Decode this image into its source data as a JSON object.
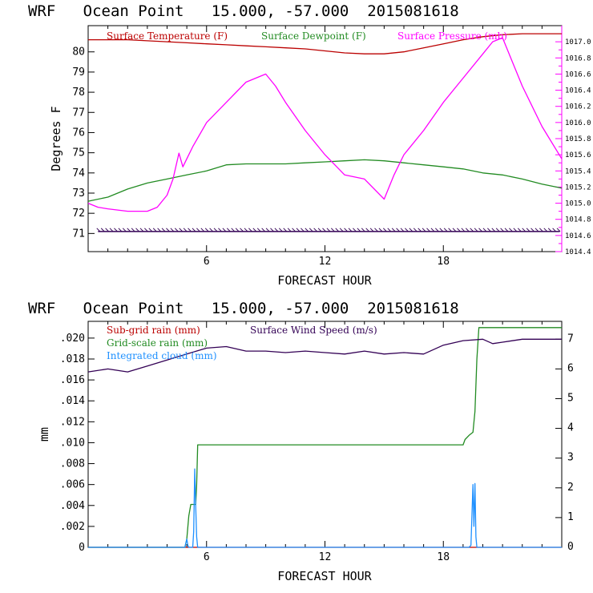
{
  "chart_data": [
    {
      "type": "line",
      "title": "WRF   Ocean Point   15.000, -57.000  2015081618",
      "xlabel": "FORECAST HOUR",
      "ylabel": "Degrees F",
      "xlim": [
        0,
        24
      ],
      "ylim": [
        70.1,
        81.3
      ],
      "y2lim": [
        1014.4,
        1017.2
      ],
      "xticks": [
        "6",
        "12",
        "18"
      ],
      "yticks": [
        "71",
        "72",
        "73",
        "74",
        "75",
        "76",
        "77",
        "78",
        "79",
        "80"
      ],
      "y2ticks": [
        "1014.4",
        "1014.6",
        "1014.8",
        "1015.0",
        "1015.2",
        "1015.4",
        "1015.6",
        "1015.8",
        "1016.0",
        "1016.2",
        "1016.4",
        "1016.6",
        "1016.8",
        "1017.0"
      ],
      "series": [
        {
          "name": "Surface Temperature (F)",
          "color": "#bb0000",
          "axis": "left",
          "x": [
            0,
            1,
            2,
            3,
            4,
            5,
            6,
            7,
            8,
            9,
            10,
            11,
            12,
            13,
            14,
            15,
            16,
            17,
            18,
            19,
            20,
            21,
            22,
            23,
            24
          ],
          "y": [
            80.6,
            80.6,
            80.6,
            80.55,
            80.5,
            80.45,
            80.4,
            80.35,
            80.3,
            80.25,
            80.2,
            80.15,
            80.05,
            79.95,
            79.9,
            79.9,
            80.0,
            80.2,
            80.4,
            80.6,
            80.75,
            80.85,
            80.9,
            80.9,
            80.9
          ]
        },
        {
          "name": "Surface Dewpoint (F)",
          "color": "#228b22",
          "axis": "left",
          "x": [
            0,
            1,
            2,
            3,
            4,
            5,
            6,
            7,
            8,
            9,
            10,
            11,
            12,
            13,
            14,
            15,
            16,
            17,
            18,
            19,
            20,
            21,
            22,
            23,
            24
          ],
          "y": [
            72.6,
            72.8,
            73.2,
            73.5,
            73.7,
            73.9,
            74.1,
            74.4,
            74.45,
            74.45,
            74.45,
            74.5,
            74.55,
            74.6,
            74.65,
            74.6,
            74.5,
            74.4,
            74.3,
            74.2,
            74.0,
            73.9,
            73.7,
            73.45,
            73.25
          ]
        },
        {
          "name": "Surface Pressure (mb)",
          "color": "#ff00ff",
          "axis": "right",
          "x": [
            0,
            0.5,
            1,
            2,
            3,
            3.5,
            4,
            4.3,
            4.6,
            4.8,
            5.0,
            5.3,
            6,
            7,
            8,
            9,
            9.5,
            10,
            11,
            12,
            13,
            14,
            15,
            15.5,
            16,
            17,
            18,
            19,
            20,
            20.5,
            21,
            21.5,
            22,
            23,
            24
          ],
          "y": [
            1015.0,
            1014.95,
            1014.93,
            1014.9,
            1014.9,
            1014.95,
            1015.1,
            1015.3,
            1015.62,
            1015.45,
            1015.55,
            1015.7,
            1016.0,
            1016.25,
            1016.5,
            1016.6,
            1016.45,
            1016.25,
            1015.9,
            1015.6,
            1015.35,
            1015.3,
            1015.05,
            1015.35,
            1015.6,
            1015.9,
            1016.25,
            1016.55,
            1016.85,
            1017.0,
            1017.05,
            1016.75,
            1016.45,
            1015.95,
            1015.55
          ]
        }
      ],
      "bottom_line": {
        "name": "Wind barbs",
        "color": "#330055",
        "y": 71.1
      }
    },
    {
      "type": "line",
      "title": "WRF   Ocean Point   15.000, -57.000  2015081618",
      "xlabel": "FORECAST HOUR",
      "ylabel": "mm",
      "xlim": [
        0,
        24
      ],
      "ylim": [
        0,
        0.0216
      ],
      "y2lim": [
        0,
        7.6
      ],
      "xticks": [
        "6",
        "12",
        "18"
      ],
      "yticks": [
        "0",
        ".002",
        ".004",
        ".006",
        ".008",
        ".010",
        ".012",
        ".014",
        ".016",
        ".018",
        ".020"
      ],
      "y2ticks": [
        "0",
        "1",
        "2",
        "3",
        "4",
        "5",
        "6",
        "7"
      ],
      "series": [
        {
          "name": "Sub-grid rain (mm)",
          "color": "#bb0000",
          "axis": "left",
          "x": [
            0,
            24
          ],
          "y": [
            0,
            0
          ]
        },
        {
          "name": "Grid-scale rain (mm)",
          "color": "#228b22",
          "axis": "left",
          "x": [
            0,
            4.9,
            5.0,
            5.1,
            5.2,
            5.3,
            5.45,
            5.5,
            5.55,
            19.0,
            19.1,
            19.3,
            19.5,
            19.6,
            19.7,
            19.8,
            24
          ],
          "y": [
            0,
            0,
            0.0008,
            0.003,
            0.0041,
            0.0041,
            0.0041,
            0.006,
            0.0098,
            0.0098,
            0.0103,
            0.0107,
            0.011,
            0.013,
            0.018,
            0.021,
            0.021
          ]
        },
        {
          "name": "Integrated cloud (mm)",
          "color": "#1e90ff",
          "axis": "left",
          "x": [
            0,
            4.9,
            5.0,
            5.05,
            5.1,
            5.2,
            5.3,
            5.35,
            5.4,
            5.45,
            5.5,
            5.55,
            5.6,
            5.7,
            19.3,
            19.4,
            19.5,
            19.55,
            19.6,
            19.65,
            19.7,
            19.8,
            24
          ],
          "y": [
            0,
            0,
            0.0008,
            0.0002,
            0,
            0,
            0,
            0.0015,
            0.0075,
            0.004,
            0.001,
            0,
            0,
            0,
            0,
            0.0002,
            0.006,
            0.002,
            0.0061,
            0.001,
            0,
            0,
            0
          ]
        },
        {
          "name": "Surface Wind Speed (m/s)",
          "color": "#330055",
          "axis": "right",
          "x": [
            0,
            1,
            2,
            3,
            4,
            5,
            6,
            7,
            8,
            9,
            10,
            11,
            12,
            13,
            14,
            15,
            16,
            17,
            18,
            19,
            20,
            20.5,
            21,
            22,
            23,
            24
          ],
          "y": [
            5.9,
            6.0,
            5.9,
            6.1,
            6.3,
            6.5,
            6.7,
            6.75,
            6.6,
            6.6,
            6.55,
            6.6,
            6.55,
            6.5,
            6.6,
            6.5,
            6.55,
            6.5,
            6.8,
            6.95,
            7.0,
            6.85,
            6.9,
            7.0,
            7.0,
            7.0
          ]
        }
      ]
    }
  ]
}
